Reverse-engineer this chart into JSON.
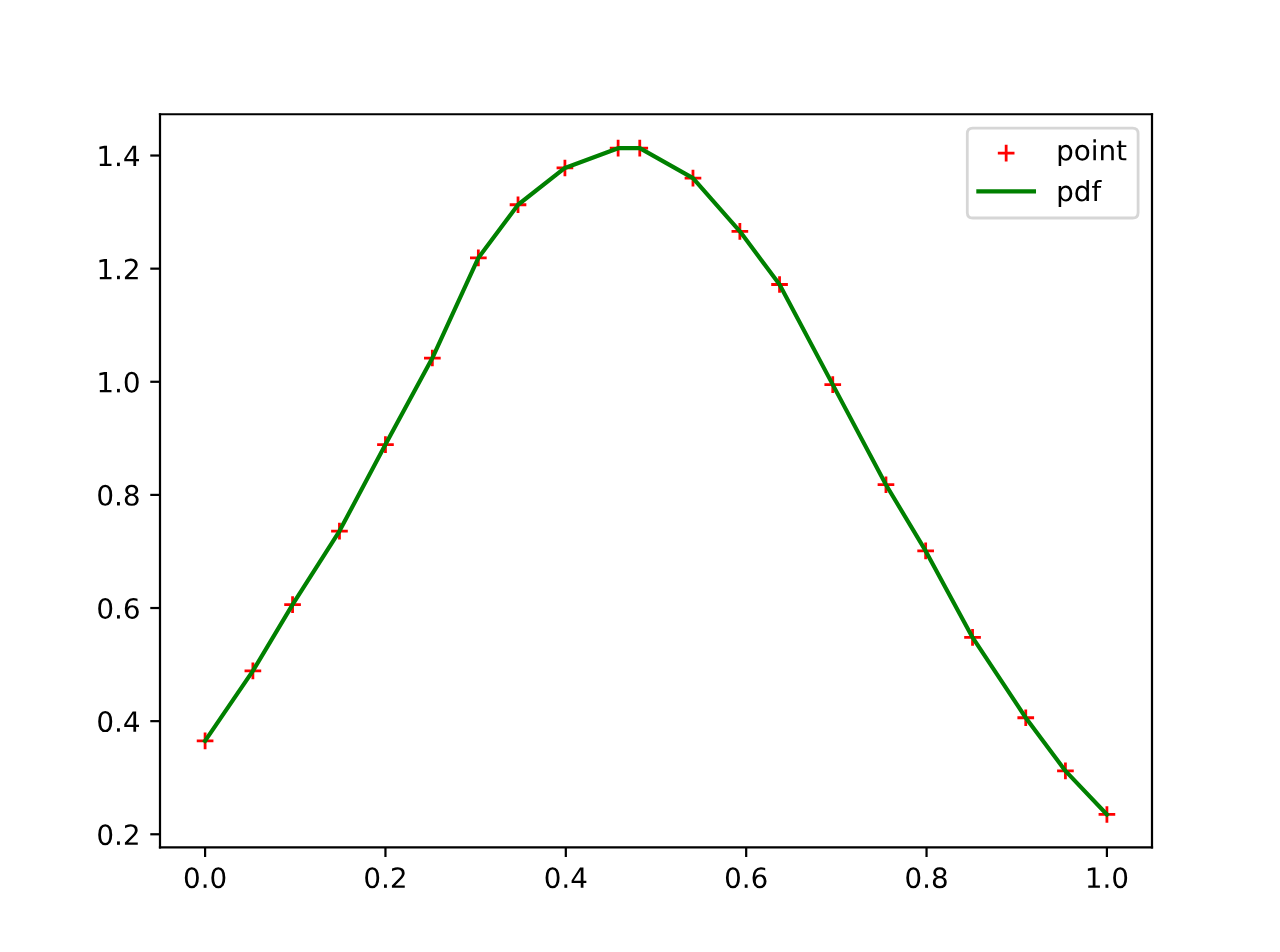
{
  "chart_data": {
    "type": "scatter",
    "x": [
      0,
      0.053,
      0.097,
      0.149,
      0.2,
      0.252,
      0.303,
      0.347,
      0.399,
      0.458,
      0.482,
      0.541,
      0.593,
      0.637,
      0.696,
      0.755,
      0.799,
      0.851,
      0.91,
      0.954,
      1.0
    ],
    "series": [
      {
        "name": "point",
        "marker": "cross",
        "color": "#ff0000",
        "values": [
          0.365,
          0.489,
          0.606,
          0.736,
          0.889,
          1.042,
          1.219,
          1.313,
          1.378,
          1.413,
          1.413,
          1.36,
          1.266,
          1.172,
          0.995,
          0.818,
          0.701,
          0.548,
          0.406,
          0.312,
          0.235
        ]
      },
      {
        "name": "pdf",
        "type": "line",
        "marker": "none",
        "line_style": "solid",
        "color": "#008000",
        "values": [
          0.365,
          0.489,
          0.606,
          0.736,
          0.889,
          1.042,
          1.219,
          1.313,
          1.378,
          1.413,
          1.413,
          1.36,
          1.266,
          1.172,
          0.995,
          0.818,
          0.701,
          0.548,
          0.406,
          0.312,
          0.235
        ]
      }
    ],
    "xlim": [
      -0.05,
      1.05
    ],
    "xticks": [
      {
        "value": 0,
        "label": "0.0"
      },
      0.2,
      0.4,
      0.6,
      0.8,
      {
        "value": 1,
        "label": "1.0"
      }
    ],
    "ylim": [
      0.177,
      1.473
    ],
    "yticks": [
      0.2,
      0.4,
      0.6,
      0.8,
      {
        "value": 1,
        "label": "1.0"
      },
      1.2,
      1.4
    ],
    "grid": false,
    "legend": "top right"
  }
}
